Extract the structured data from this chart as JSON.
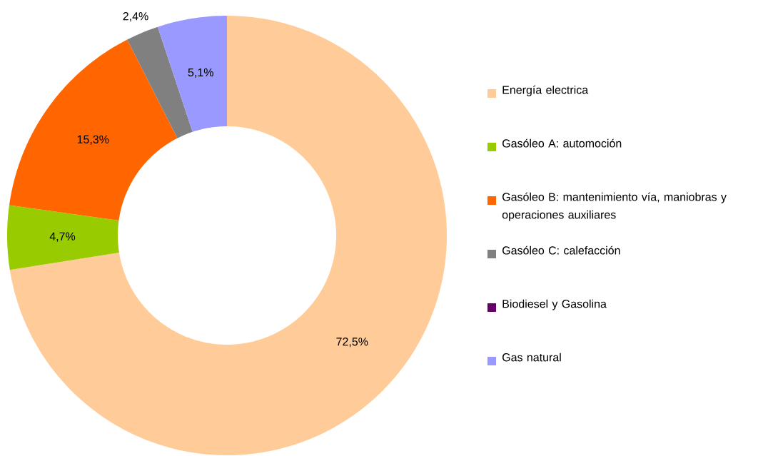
{
  "chart_data": {
    "type": "donut",
    "categories": [
      "Energía electrica",
      "Gasóleo A: automoción",
      "Gasóleo B: mantenimiento vía, maniobras y operaciones auxiliares",
      "Gasóleo C: calefacción",
      "Biodiesel y Gasolina",
      "Gas natural"
    ],
    "values": [
      72.5,
      4.7,
      15.3,
      2.4,
      0,
      5.1
    ],
    "colors": [
      "#ffcc99",
      "#99cc00",
      "#ff6600",
      "#808080",
      "#660066",
      "#9999ff"
    ],
    "value_labels": [
      "72,5%",
      "4,7%",
      "15,3%",
      "2,4%",
      null,
      "5,1%"
    ],
    "legend": "right"
  }
}
